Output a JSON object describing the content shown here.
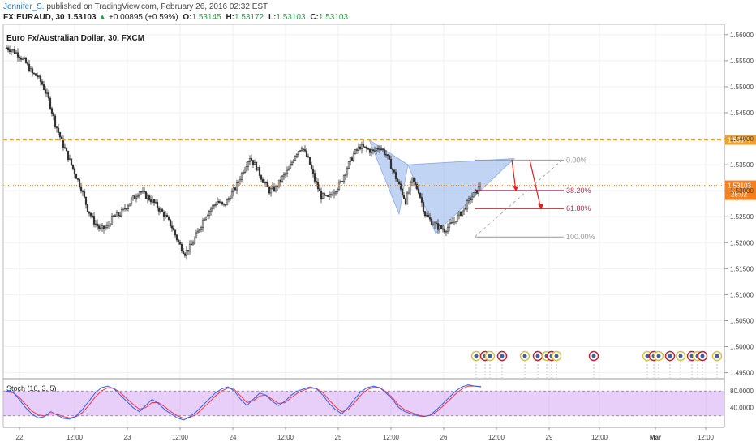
{
  "header": {
    "author": "Jennifer_S.",
    "published_text": "published on TradingView.com, February 26, 2016 02:32 EST",
    "symbol": "FX:EURAUD, 30",
    "last": "1.53103",
    "change_arrow": "▲",
    "change": "+0.00895 (+0.59%)",
    "o_label": "O:",
    "o": "1.53145",
    "h_label": "H:",
    "h": "1.53172",
    "l_label": "L:",
    "l": "1.53103",
    "c_label": "C:",
    "c": "1.53103"
  },
  "chart_data": {
    "type": "candlestick",
    "title": "Euro Fx/Australian Dollar, 30, FXCM",
    "ylim": [
      1.494,
      1.562
    ],
    "y_ticks": [
      "1.56000",
      "1.55500",
      "1.55000",
      "1.54500",
      "1.54000",
      "1.53500",
      "1.53000",
      "1.52500",
      "1.52000",
      "1.51500",
      "1.51000",
      "1.50500",
      "1.50000",
      "1.49500"
    ],
    "x_ticks": [
      "22",
      "12:00",
      "23",
      "12:00",
      "24",
      "12:00",
      "25",
      "12:00",
      "26",
      "12:00",
      "29",
      "12:00",
      "Mar",
      "12:00"
    ],
    "horizontal_level": {
      "value": 1.53977,
      "label": "1.53977",
      "color": "#f0a030"
    },
    "current_price": {
      "value": 1.53103,
      "label": "1.53103",
      "countdown": "28:02",
      "color": "#f5801f"
    },
    "fibonacci": [
      {
        "label": "0.00%",
        "value": 1.5359
      },
      {
        "label": "38.20%",
        "value": 1.53
      },
      {
        "label": "61.80%",
        "value": 1.5266
      },
      {
        "label": "100.00%",
        "value": 1.5211
      }
    ],
    "pattern": "harmonic (shaded triangles)",
    "close_path": [
      [
        0,
        1.5575
      ],
      [
        4,
        1.557
      ],
      [
        8,
        1.556
      ],
      [
        12,
        1.5545
      ],
      [
        16,
        1.5525
      ],
      [
        19,
        1.552
      ],
      [
        22,
        1.5505
      ],
      [
        26,
        1.5475
      ],
      [
        30,
        1.543
      ],
      [
        34,
        1.5395
      ],
      [
        38,
        1.5365
      ],
      [
        42,
        1.5335
      ],
      [
        46,
        1.5305
      ],
      [
        50,
        1.5265
      ],
      [
        54,
        1.524
      ],
      [
        58,
        1.5225
      ],
      [
        62,
        1.523
      ],
      [
        66,
        1.525
      ],
      [
        70,
        1.5255
      ],
      [
        74,
        1.527
      ],
      [
        78,
        1.5285
      ],
      [
        82,
        1.53
      ],
      [
        86,
        1.529
      ],
      [
        90,
        1.528
      ],
      [
        94,
        1.5265
      ],
      [
        98,
        1.525
      ],
      [
        102,
        1.523
      ],
      [
        106,
        1.52
      ],
      [
        110,
        1.518
      ],
      [
        114,
        1.5195
      ],
      [
        118,
        1.522
      ],
      [
        122,
        1.525
      ],
      [
        126,
        1.5265
      ],
      [
        130,
        1.528
      ],
      [
        134,
        1.527
      ],
      [
        138,
        1.529
      ],
      [
        142,
        1.531
      ],
      [
        146,
        1.534
      ],
      [
        150,
        1.5365
      ],
      [
        154,
        1.5345
      ],
      [
        158,
        1.532
      ],
      [
        162,
        1.53
      ],
      [
        166,
        1.5305
      ],
      [
        170,
        1.5325
      ],
      [
        174,
        1.534
      ],
      [
        178,
        1.537
      ],
      [
        182,
        1.5385
      ],
      [
        186,
        1.536
      ],
      [
        190,
        1.532
      ],
      [
        194,
        1.529
      ],
      [
        198,
        1.5285
      ],
      [
        202,
        1.53
      ],
      [
        206,
        1.5315
      ],
      [
        210,
        1.5345
      ],
      [
        214,
        1.537
      ],
      [
        218,
        1.5385
      ],
      [
        222,
        1.538
      ],
      [
        226,
        1.5375
      ],
      [
        230,
        1.5385
      ],
      [
        234,
        1.537
      ],
      [
        238,
        1.534
      ],
      [
        242,
        1.531
      ],
      [
        246,
        1.528
      ],
      [
        250,
        1.532
      ],
      [
        254,
        1.53
      ],
      [
        258,
        1.5255
      ],
      [
        262,
        1.524
      ],
      [
        266,
        1.523
      ],
      [
        270,
        1.5225
      ],
      [
        274,
        1.5235
      ],
      [
        278,
        1.525
      ],
      [
        282,
        1.5265
      ],
      [
        286,
        1.5285
      ],
      [
        290,
        1.53
      ],
      [
        292,
        1.531
      ],
      [
        294,
        1.5305
      ]
    ],
    "stochastic": {
      "label": "Stoch (10, 3, 5)",
      "ylim": [
        0,
        100
      ],
      "y_ticks": [
        "80.0000",
        "40.0000"
      ],
      "levels": [
        80,
        20
      ],
      "k": [
        80,
        78,
        60,
        40,
        25,
        15,
        18,
        30,
        22,
        14,
        12,
        20,
        35,
        55,
        75,
        88,
        92,
        85,
        70,
        55,
        40,
        30,
        45,
        60,
        50,
        35,
        25,
        15,
        10,
        18,
        30,
        45,
        60,
        75,
        85,
        90,
        80,
        60,
        45,
        60,
        75,
        70,
        55,
        45,
        55,
        70,
        80,
        85,
        90,
        85,
        70,
        50,
        35,
        25,
        40,
        60,
        78,
        88,
        92,
        88,
        75,
        60,
        40,
        30,
        25,
        20,
        18,
        22,
        35,
        50,
        65,
        80,
        90,
        95,
        92,
        90
      ],
      "d": [
        78,
        76,
        65,
        48,
        32,
        22,
        20,
        25,
        24,
        18,
        15,
        18,
        28,
        45,
        65,
        80,
        88,
        86,
        76,
        62,
        48,
        36,
        40,
        52,
        52,
        42,
        30,
        20,
        14,
        16,
        24,
        38,
        52,
        68,
        80,
        87,
        84,
        68,
        52,
        56,
        68,
        70,
        60,
        50,
        52,
        64,
        75,
        82,
        87,
        86,
        76,
        58,
        42,
        30,
        35,
        52,
        70,
        83,
        89,
        88,
        78,
        64,
        46,
        34,
        28,
        22,
        19,
        21,
        30,
        44,
        58,
        73,
        85,
        92,
        92,
        91
      ]
    },
    "k_color": "#2962ff",
    "d_color": "#f23645"
  }
}
